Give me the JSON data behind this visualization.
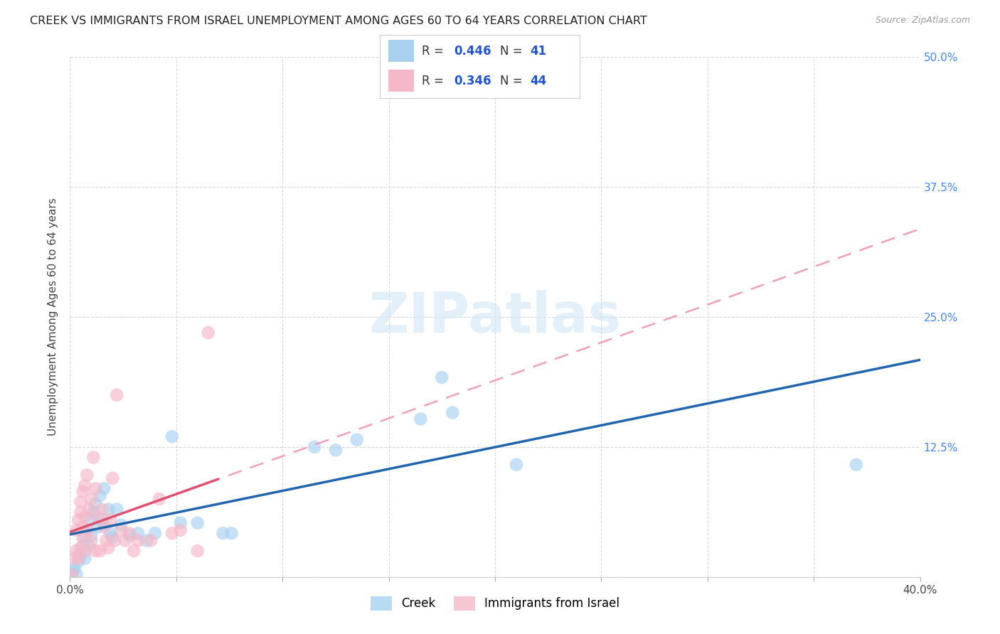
{
  "title": "CREEK VS IMMIGRANTS FROM ISRAEL UNEMPLOYMENT AMONG AGES 60 TO 64 YEARS CORRELATION CHART",
  "source": "Source: ZipAtlas.com",
  "ylabel": "Unemployment Among Ages 60 to 64 years",
  "xlim": [
    0.0,
    0.4
  ],
  "ylim": [
    0.0,
    0.5
  ],
  "xticks": [
    0.0,
    0.05,
    0.1,
    0.15,
    0.2,
    0.25,
    0.3,
    0.35,
    0.4
  ],
  "yticks": [
    0.0,
    0.125,
    0.25,
    0.375,
    0.5
  ],
  "creek_R": 0.446,
  "creek_N": 41,
  "israel_R": 0.346,
  "israel_N": 44,
  "creek_color": "#a8d1f0",
  "israel_color": "#f5b8c8",
  "creek_line_color": "#2166ac",
  "israel_line_color": "#e05070",
  "israel_dash_color": "#f0a0b8",
  "creek_dash_color": "#b8d8f0",
  "creek_points": [
    [
      0.001,
      0.005
    ],
    [
      0.002,
      0.008
    ],
    [
      0.003,
      0.003
    ],
    [
      0.004,
      0.015
    ],
    [
      0.005,
      0.022
    ],
    [
      0.006,
      0.03
    ],
    [
      0.007,
      0.038
    ],
    [
      0.007,
      0.018
    ],
    [
      0.008,
      0.045
    ],
    [
      0.009,
      0.03
    ],
    [
      0.01,
      0.055
    ],
    [
      0.01,
      0.04
    ],
    [
      0.011,
      0.062
    ],
    [
      0.012,
      0.07
    ],
    [
      0.013,
      0.048
    ],
    [
      0.014,
      0.078
    ],
    [
      0.015,
      0.055
    ],
    [
      0.016,
      0.085
    ],
    [
      0.016,
      0.05
    ],
    [
      0.018,
      0.065
    ],
    [
      0.019,
      0.042
    ],
    [
      0.02,
      0.038
    ],
    [
      0.022,
      0.065
    ],
    [
      0.024,
      0.05
    ],
    [
      0.028,
      0.04
    ],
    [
      0.032,
      0.042
    ],
    [
      0.036,
      0.035
    ],
    [
      0.04,
      0.042
    ],
    [
      0.048,
      0.135
    ],
    [
      0.052,
      0.052
    ],
    [
      0.06,
      0.052
    ],
    [
      0.072,
      0.042
    ],
    [
      0.076,
      0.042
    ],
    [
      0.115,
      0.125
    ],
    [
      0.125,
      0.122
    ],
    [
      0.135,
      0.132
    ],
    [
      0.165,
      0.152
    ],
    [
      0.175,
      0.192
    ],
    [
      0.18,
      0.158
    ],
    [
      0.21,
      0.108
    ],
    [
      0.37,
      0.108
    ]
  ],
  "israel_points": [
    [
      0.001,
      0.002
    ],
    [
      0.002,
      0.018
    ],
    [
      0.003,
      0.025
    ],
    [
      0.003,
      0.045
    ],
    [
      0.004,
      0.055
    ],
    [
      0.004,
      0.018
    ],
    [
      0.005,
      0.062
    ],
    [
      0.005,
      0.028
    ],
    [
      0.005,
      0.072
    ],
    [
      0.006,
      0.038
    ],
    [
      0.006,
      0.082
    ],
    [
      0.006,
      0.048
    ],
    [
      0.007,
      0.088
    ],
    [
      0.007,
      0.058
    ],
    [
      0.007,
      0.025
    ],
    [
      0.008,
      0.098
    ],
    [
      0.008,
      0.045
    ],
    [
      0.009,
      0.065
    ],
    [
      0.01,
      0.075
    ],
    [
      0.01,
      0.035
    ],
    [
      0.011,
      0.115
    ],
    [
      0.012,
      0.085
    ],
    [
      0.012,
      0.025
    ],
    [
      0.013,
      0.058
    ],
    [
      0.014,
      0.025
    ],
    [
      0.015,
      0.065
    ],
    [
      0.016,
      0.048
    ],
    [
      0.017,
      0.035
    ],
    [
      0.018,
      0.028
    ],
    [
      0.019,
      0.055
    ],
    [
      0.02,
      0.095
    ],
    [
      0.021,
      0.035
    ],
    [
      0.022,
      0.175
    ],
    [
      0.024,
      0.045
    ],
    [
      0.026,
      0.035
    ],
    [
      0.028,
      0.042
    ],
    [
      0.03,
      0.025
    ],
    [
      0.032,
      0.035
    ],
    [
      0.038,
      0.035
    ],
    [
      0.042,
      0.075
    ],
    [
      0.048,
      0.042
    ],
    [
      0.052,
      0.045
    ],
    [
      0.06,
      0.025
    ],
    [
      0.065,
      0.235
    ]
  ],
  "watermark": "ZIPatlas",
  "background_color": "#ffffff",
  "grid_color": "#d0d0d0"
}
